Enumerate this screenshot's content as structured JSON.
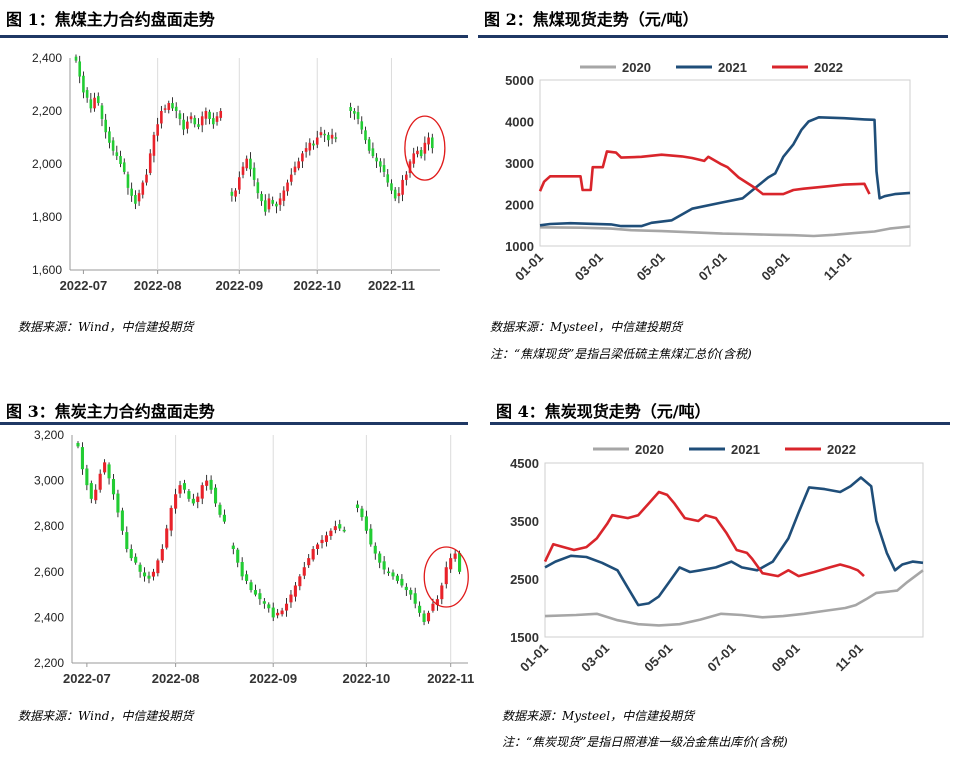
{
  "colors": {
    "up": "#e8222a",
    "down": "#22cc33",
    "wick": "#000000",
    "highlight": "#e01b1b",
    "c2020": "#a6a6a6",
    "c2021": "#1f4e79",
    "c2022": "#d9252b",
    "rule": "#1f3864"
  },
  "fig1": {
    "title": "图 1：焦煤主力合约盘面走势",
    "source": "数据来源：Wind，中信建投期货"
  },
  "fig2": {
    "title": "图 2：焦煤现货走势（元/吨）",
    "source": "数据来源：Mysteel，中信建投期货",
    "note": "注：“焦煤现货”是指吕梁低硫主焦煤汇总价(含税)"
  },
  "fig3": {
    "title": "图 3：焦炭主力合约盘面走势",
    "source": "数据来源：Wind，中信建投期货"
  },
  "fig4": {
    "title": "图 4：焦炭现货走势（元/吨）",
    "source": "数据来源：Mysteel，中信建投期货",
    "note": "注：“焦炭现货”是指日照港准一级冶金焦出库价(含税)"
  },
  "chart_data": [
    {
      "id": "fig1",
      "type": "candlestick",
      "title": "焦煤主力合约盘面走势",
      "x_ticks": [
        "2022-07",
        "2022-08",
        "2022-09",
        "2022-10",
        "2022-11"
      ],
      "ylim": [
        1600,
        2400
      ],
      "y_ticks": [
        "1,600",
        "1,800",
        "2,000",
        "2,200",
        "2,400"
      ],
      "grid": "vertical",
      "closes": [
        2390,
        2330,
        2270,
        2250,
        2210,
        2250,
        2230,
        2170,
        2120,
        2080,
        2050,
        2030,
        2000,
        1970,
        1910,
        1880,
        1850,
        1890,
        1930,
        1960,
        2040,
        2110,
        2150,
        2200,
        2210,
        2230,
        2210,
        2200,
        2170,
        2130,
        2160,
        2180,
        2150,
        2140,
        2180,
        2200,
        2170,
        2150,
        2180,
        2200,
        null,
        null,
        1880,
        1900,
        1950,
        1990,
        2020,
        1980,
        1940,
        1890,
        1860,
        1820,
        1870,
        1850,
        1840,
        1870,
        1900,
        1930,
        1960,
        1990,
        2010,
        2040,
        2060,
        2080,
        2070,
        2100,
        2120,
        2110,
        2090,
        2110,
        2100,
        null,
        null,
        null,
        2200,
        2190,
        2170,
        2130,
        2090,
        2050,
        2030,
        2010,
        1990,
        1970,
        1930,
        1900,
        1870,
        1890,
        1940,
        1960,
        2010,
        2040,
        2050,
        2030,
        2080,
        2100,
        2060
      ],
      "highlight_index": 94,
      "highlight_label": ""
    },
    {
      "id": "fig2",
      "type": "line",
      "title": "焦煤现货走势（元/吨）",
      "x_ticks": [
        "01-01",
        "03-01",
        "05-01",
        "07-01",
        "09-01",
        "11-01"
      ],
      "ylim": [
        1000,
        5000
      ],
      "y_ticks": [
        "1000",
        "2000",
        "3000",
        "4000",
        "5000"
      ],
      "legend_position": "top",
      "series": [
        {
          "name": "2020",
          "color_key": "c2020",
          "points": [
            [
              0,
              1450
            ],
            [
              40,
              1440
            ],
            [
              70,
              1420
            ],
            [
              90,
              1380
            ],
            [
              120,
              1360
            ],
            [
              150,
              1330
            ],
            [
              180,
              1300
            ],
            [
              200,
              1290
            ],
            [
              230,
              1270
            ],
            [
              250,
              1260
            ],
            [
              270,
              1240
            ],
            [
              290,
              1270
            ],
            [
              310,
              1310
            ],
            [
              330,
              1350
            ],
            [
              345,
              1420
            ],
            [
              365,
              1470
            ]
          ]
        },
        {
          "name": "2021",
          "color_key": "c2021",
          "points": [
            [
              0,
              1500
            ],
            [
              10,
              1530
            ],
            [
              30,
              1550
            ],
            [
              70,
              1520
            ],
            [
              80,
              1480
            ],
            [
              100,
              1480
            ],
            [
              110,
              1560
            ],
            [
              130,
              1620
            ],
            [
              150,
              1900
            ],
            [
              180,
              2050
            ],
            [
              200,
              2150
            ],
            [
              215,
              2450
            ],
            [
              225,
              2650
            ],
            [
              232,
              2750
            ],
            [
              240,
              3150
            ],
            [
              250,
              3450
            ],
            [
              258,
              3800
            ],
            [
              265,
              4000
            ],
            [
              275,
              4100
            ],
            [
              300,
              4080
            ],
            [
              320,
              4050
            ],
            [
              330,
              4040
            ],
            [
              332,
              2800
            ],
            [
              335,
              2150
            ],
            [
              340,
              2200
            ],
            [
              350,
              2250
            ],
            [
              365,
              2280
            ]
          ]
        },
        {
          "name": "2022",
          "color_key": "c2022",
          "points": [
            [
              0,
              2320
            ],
            [
              4,
              2550
            ],
            [
              10,
              2680
            ],
            [
              40,
              2680
            ],
            [
              42,
              2350
            ],
            [
              50,
              2350
            ],
            [
              52,
              2900
            ],
            [
              62,
              2900
            ],
            [
              66,
              3280
            ],
            [
              75,
              3250
            ],
            [
              80,
              3130
            ],
            [
              100,
              3150
            ],
            [
              120,
              3200
            ],
            [
              140,
              3160
            ],
            [
              150,
              3120
            ],
            [
              162,
              3050
            ],
            [
              166,
              3150
            ],
            [
              178,
              2980
            ],
            [
              185,
              2900
            ],
            [
              196,
              2650
            ],
            [
              212,
              2400
            ],
            [
              220,
              2250
            ],
            [
              240,
              2250
            ],
            [
              250,
              2350
            ],
            [
              260,
              2380
            ],
            [
              280,
              2430
            ],
            [
              300,
              2480
            ],
            [
              320,
              2500
            ],
            [
              322,
              2400
            ],
            [
              325,
              2250
            ]
          ]
        }
      ]
    },
    {
      "id": "fig3",
      "type": "candlestick",
      "title": "焦炭主力合约盘面走势",
      "x_ticks": [
        "2022-07",
        "2022-08",
        "2022-09",
        "2022-10",
        "2022-11"
      ],
      "ylim": [
        2200,
        3200
      ],
      "y_ticks": [
        "2,200",
        "2,400",
        "2,600",
        "2,800",
        "3,000",
        "3,200"
      ],
      "grid": "vertical",
      "closes": [
        3150,
        3050,
        2980,
        2920,
        2960,
        3030,
        3080,
        3010,
        2940,
        2860,
        2780,
        2700,
        2660,
        2640,
        2600,
        2580,
        2570,
        2600,
        2650,
        2700,
        2790,
        2880,
        2940,
        2980,
        2960,
        2920,
        2900,
        2930,
        2980,
        3000,
        2960,
        2900,
        2850,
        2820,
        null,
        2700,
        2640,
        2580,
        2560,
        2520,
        2500,
        2480,
        2460,
        2440,
        2400,
        2420,
        2430,
        2460,
        2500,
        2540,
        2580,
        2620,
        2660,
        2700,
        2720,
        2740,
        2760,
        2780,
        2800,
        2790,
        2780,
        null,
        null,
        2880,
        2840,
        2780,
        2720,
        2680,
        2640,
        2610,
        2600,
        2580,
        2560,
        2540,
        2520,
        2500,
        2460,
        2420,
        2380,
        2420,
        2460,
        2480,
        2540,
        2620,
        2660,
        2680,
        2600
      ],
      "highlight_index": 83,
      "highlight_label": ""
    },
    {
      "id": "fig4",
      "type": "line",
      "title": "焦炭现货走势（元/吨）",
      "x_ticks": [
        "01-01",
        "03-01",
        "05-01",
        "07-01",
        "09-01",
        "11-01"
      ],
      "ylim": [
        1500,
        4500
      ],
      "y_ticks": [
        "1500",
        "2500",
        "3500",
        "4500"
      ],
      "legend_position": "top",
      "series": [
        {
          "name": "2020",
          "color_key": "c2020",
          "points": [
            [
              0,
              1860
            ],
            [
              30,
              1880
            ],
            [
              50,
              1900
            ],
            [
              70,
              1790
            ],
            [
              90,
              1720
            ],
            [
              110,
              1700
            ],
            [
              130,
              1720
            ],
            [
              150,
              1800
            ],
            [
              170,
              1900
            ],
            [
              190,
              1880
            ],
            [
              210,
              1840
            ],
            [
              230,
              1860
            ],
            [
              250,
              1900
            ],
            [
              270,
              1950
            ],
            [
              290,
              2000
            ],
            [
              300,
              2050
            ],
            [
              310,
              2150
            ],
            [
              320,
              2260
            ],
            [
              340,
              2300
            ],
            [
              350,
              2450
            ],
            [
              365,
              2650
            ]
          ]
        },
        {
          "name": "2021",
          "color_key": "c2021",
          "points": [
            [
              0,
              2700
            ],
            [
              10,
              2800
            ],
            [
              25,
              2900
            ],
            [
              40,
              2880
            ],
            [
              55,
              2780
            ],
            [
              70,
              2650
            ],
            [
              80,
              2350
            ],
            [
              90,
              2050
            ],
            [
              100,
              2080
            ],
            [
              110,
              2200
            ],
            [
              120,
              2450
            ],
            [
              130,
              2700
            ],
            [
              140,
              2620
            ],
            [
              150,
              2650
            ],
            [
              165,
              2700
            ],
            [
              180,
              2800
            ],
            [
              190,
              2700
            ],
            [
              205,
              2650
            ],
            [
              220,
              2800
            ],
            [
              235,
              3200
            ],
            [
              245,
              3650
            ],
            [
              255,
              4080
            ],
            [
              270,
              4050
            ],
            [
              285,
              4000
            ],
            [
              295,
              4100
            ],
            [
              305,
              4250
            ],
            [
              315,
              4100
            ],
            [
              320,
              3500
            ],
            [
              330,
              2950
            ],
            [
              338,
              2650
            ],
            [
              345,
              2750
            ],
            [
              355,
              2800
            ],
            [
              365,
              2780
            ]
          ]
        },
        {
          "name": "2022",
          "color_key": "c2022",
          "points": [
            [
              0,
              2800
            ],
            [
              8,
              3100
            ],
            [
              18,
              3050
            ],
            [
              28,
              3000
            ],
            [
              40,
              3050
            ],
            [
              50,
              3200
            ],
            [
              60,
              3450
            ],
            [
              65,
              3600
            ],
            [
              80,
              3550
            ],
            [
              90,
              3600
            ],
            [
              100,
              3800
            ],
            [
              110,
              4000
            ],
            [
              118,
              3950
            ],
            [
              125,
              3800
            ],
            [
              135,
              3550
            ],
            [
              148,
              3500
            ],
            [
              155,
              3600
            ],
            [
              165,
              3550
            ],
            [
              175,
              3300
            ],
            [
              185,
              3000
            ],
            [
              195,
              2950
            ],
            [
              200,
              2850
            ],
            [
              210,
              2600
            ],
            [
              225,
              2550
            ],
            [
              235,
              2650
            ],
            [
              245,
              2550
            ],
            [
              260,
              2620
            ],
            [
              275,
              2700
            ],
            [
              285,
              2750
            ],
            [
              295,
              2700
            ],
            [
              302,
              2650
            ],
            [
              308,
              2550
            ]
          ]
        }
      ]
    }
  ]
}
